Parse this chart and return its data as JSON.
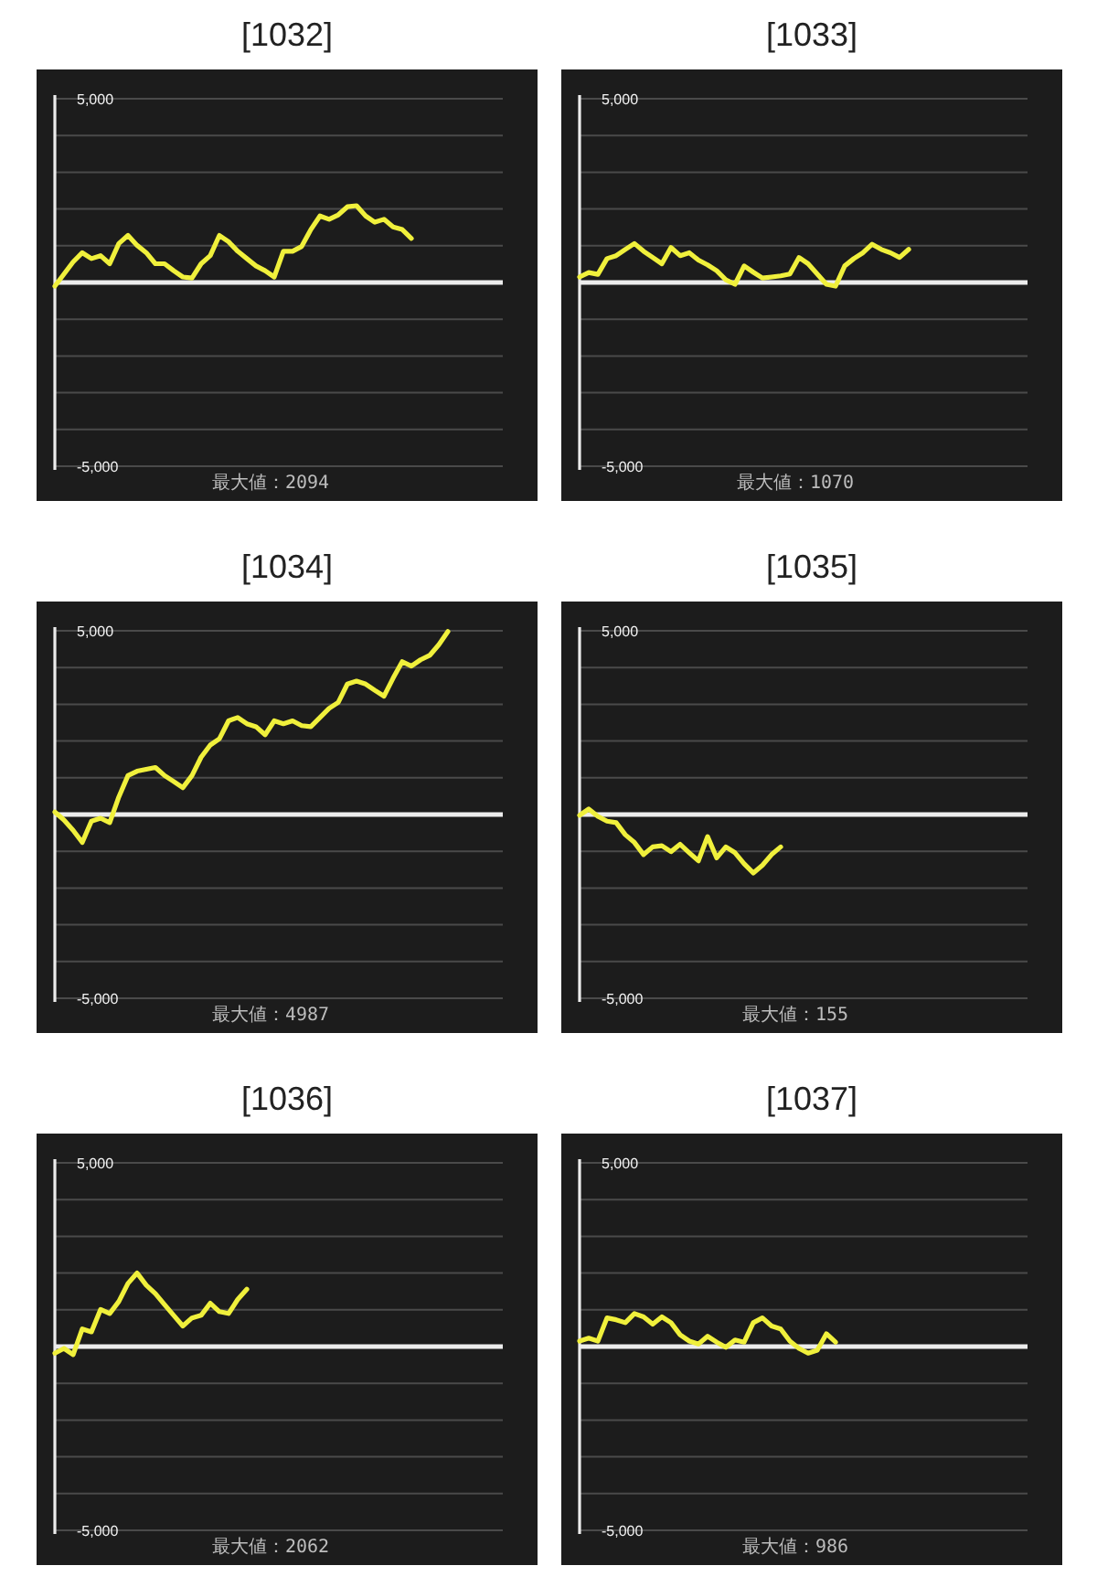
{
  "chart_data": [
    {
      "type": "line",
      "title": "[1032]",
      "annotations": [
        "最大値：2094"
      ],
      "color": "#f0f03c",
      "ylim": [
        -5000,
        5000
      ],
      "grid": "y",
      "tick_labels": "y",
      "yticks": [
        {
          "value": -5000,
          "label": "-5,000"
        },
        {
          "value": -4000,
          "label": null
        },
        {
          "value": -3000,
          "label": null
        },
        {
          "value": -2000,
          "label": null
        },
        {
          "value": -1000,
          "label": null
        },
        {
          "value": 0,
          "label": null
        },
        {
          "value": 1000,
          "label": null
        },
        {
          "value": 2000,
          "label": null
        },
        {
          "value": 3000,
          "label": null
        },
        {
          "value": 4000,
          "label": null
        },
        {
          "value": 5000,
          "label": "5,000"
        }
      ],
      "categories": [
        null,
        null,
        null,
        null,
        null,
        null,
        null,
        null,
        null,
        null,
        null,
        null,
        null,
        null,
        null,
        null,
        null,
        null,
        null,
        null,
        null,
        null,
        null,
        null,
        null,
        null,
        null,
        null,
        null,
        null,
        null,
        null,
        null,
        null,
        null,
        null,
        null,
        null,
        null,
        null,
        null,
        null,
        null,
        null,
        null,
        null,
        null,
        null,
        null,
        null
      ],
      "values": [
        -100,
        230,
        560,
        810,
        650,
        730,
        510,
        1060,
        1280,
        1010,
        810,
        510,
        510,
        320,
        150,
        120,
        510,
        730,
        1280,
        1110,
        850,
        650,
        450,
        320,
        150,
        850,
        850,
        980,
        1440,
        1810,
        1720,
        1840,
        2060,
        2090,
        1810,
        1640,
        1720,
        1510,
        1440,
        1200,
        null,
        null,
        null,
        null,
        null,
        null,
        null,
        null,
        null,
        null
      ]
    },
    {
      "type": "line",
      "title": "[1033]",
      "annotations": [
        "最大値：1070"
      ],
      "color": "#f0f03c",
      "ylim": [
        -5000,
        5000
      ],
      "grid": "y",
      "tick_labels": "y",
      "yticks": [
        {
          "value": -5000,
          "label": "-5,000"
        },
        {
          "value": -4000,
          "label": null
        },
        {
          "value": -3000,
          "label": null
        },
        {
          "value": -2000,
          "label": null
        },
        {
          "value": -1000,
          "label": null
        },
        {
          "value": 0,
          "label": null
        },
        {
          "value": 1000,
          "label": null
        },
        {
          "value": 2000,
          "label": null
        },
        {
          "value": 3000,
          "label": null
        },
        {
          "value": 4000,
          "label": null
        },
        {
          "value": 5000,
          "label": "5,000"
        }
      ],
      "categories": [
        null,
        null,
        null,
        null,
        null,
        null,
        null,
        null,
        null,
        null,
        null,
        null,
        null,
        null,
        null,
        null,
        null,
        null,
        null,
        null,
        null,
        null,
        null,
        null,
        null,
        null,
        null,
        null,
        null,
        null,
        null,
        null,
        null,
        null,
        null,
        null,
        null,
        null,
        null,
        null,
        null,
        null,
        null,
        null,
        null,
        null,
        null,
        null,
        null,
        null
      ],
      "values": [
        150,
        270,
        220,
        650,
        730,
        900,
        1060,
        850,
        680,
        510,
        950,
        730,
        810,
        610,
        480,
        320,
        70,
        -50,
        450,
        280,
        120,
        150,
        180,
        230,
        680,
        510,
        230,
        -50,
        -100,
        450,
        650,
        810,
        1040,
        900,
        810,
        680,
        900,
        null,
        null,
        null,
        null,
        null,
        null,
        null,
        null,
        null,
        null,
        null,
        null,
        null
      ]
    },
    {
      "type": "line",
      "title": "[1034]",
      "annotations": [
        "最大値：4987"
      ],
      "color": "#f0f03c",
      "ylim": [
        -5000,
        5000
      ],
      "grid": "y",
      "tick_labels": "y",
      "yticks": [
        {
          "value": -5000,
          "label": "-5,000"
        },
        {
          "value": -4000,
          "label": null
        },
        {
          "value": -3000,
          "label": null
        },
        {
          "value": -2000,
          "label": null
        },
        {
          "value": -1000,
          "label": null
        },
        {
          "value": 0,
          "label": null
        },
        {
          "value": 1000,
          "label": null
        },
        {
          "value": 2000,
          "label": null
        },
        {
          "value": 3000,
          "label": null
        },
        {
          "value": 4000,
          "label": null
        },
        {
          "value": 5000,
          "label": "5,000"
        }
      ],
      "categories": [
        null,
        null,
        null,
        null,
        null,
        null,
        null,
        null,
        null,
        null,
        null,
        null,
        null,
        null,
        null,
        null,
        null,
        null,
        null,
        null,
        null,
        null,
        null,
        null,
        null,
        null,
        null,
        null,
        null,
        null,
        null,
        null,
        null,
        null,
        null,
        null,
        null,
        null,
        null,
        null,
        null,
        null,
        null,
        null,
        null,
        null,
        null,
        null,
        null,
        null
      ],
      "values": [
        70,
        -150,
        -430,
        -760,
        -180,
        -100,
        -220,
        480,
        1060,
        1180,
        1230,
        1280,
        1060,
        900,
        730,
        1060,
        1560,
        1890,
        2060,
        2550,
        2640,
        2470,
        2390,
        2170,
        2550,
        2470,
        2550,
        2420,
        2390,
        2640,
        2890,
        3050,
        3550,
        3630,
        3550,
        3380,
        3220,
        3710,
        4160,
        4040,
        4210,
        4330,
        4620,
        4980,
        null,
        null,
        null,
        null,
        null,
        null
      ]
    },
    {
      "type": "line",
      "title": "[1035]",
      "annotations": [
        "最大値：155"
      ],
      "color": "#f0f03c",
      "ylim": [
        -5000,
        5000
      ],
      "grid": "y",
      "tick_labels": "y",
      "yticks": [
        {
          "value": -5000,
          "label": "-5,000"
        },
        {
          "value": -4000,
          "label": null
        },
        {
          "value": -3000,
          "label": null
        },
        {
          "value": -2000,
          "label": null
        },
        {
          "value": -1000,
          "label": null
        },
        {
          "value": 0,
          "label": null
        },
        {
          "value": 1000,
          "label": null
        },
        {
          "value": 2000,
          "label": null
        },
        {
          "value": 3000,
          "label": null
        },
        {
          "value": 4000,
          "label": null
        },
        {
          "value": 5000,
          "label": "5,000"
        }
      ],
      "categories": [
        null,
        null,
        null,
        null,
        null,
        null,
        null,
        null,
        null,
        null,
        null,
        null,
        null,
        null,
        null,
        null,
        null,
        null,
        null,
        null,
        null,
        null,
        null,
        null,
        null,
        null,
        null,
        null,
        null,
        null,
        null,
        null,
        null,
        null,
        null,
        null,
        null,
        null,
        null,
        null,
        null,
        null,
        null,
        null,
        null,
        null,
        null,
        null,
        null,
        null
      ],
      "values": [
        -20,
        150,
        -50,
        -180,
        -220,
        -550,
        -760,
        -1090,
        -880,
        -850,
        -1010,
        -810,
        -1040,
        -1260,
        -600,
        -1180,
        -880,
        -1040,
        -1340,
        -1590,
        -1380,
        -1090,
        -880,
        null,
        null,
        null,
        null,
        null,
        null,
        null,
        null,
        null,
        null,
        null,
        null,
        null,
        null,
        null,
        null,
        null,
        null,
        null,
        null,
        null,
        null,
        null,
        null,
        null,
        null,
        null
      ]
    },
    {
      "type": "line",
      "title": "[1036]",
      "annotations": [
        "最大値：2062"
      ],
      "color": "#f0f03c",
      "ylim": [
        -5000,
        5000
      ],
      "grid": "y",
      "tick_labels": "y",
      "yticks": [
        {
          "value": -5000,
          "label": "-5,000"
        },
        {
          "value": -4000,
          "label": null
        },
        {
          "value": -3000,
          "label": null
        },
        {
          "value": -2000,
          "label": null
        },
        {
          "value": -1000,
          "label": null
        },
        {
          "value": 0,
          "label": null
        },
        {
          "value": 1000,
          "label": null
        },
        {
          "value": 2000,
          "label": null
        },
        {
          "value": 3000,
          "label": null
        },
        {
          "value": 4000,
          "label": null
        },
        {
          "value": 5000,
          "label": "5,000"
        }
      ],
      "categories": [
        null,
        null,
        null,
        null,
        null,
        null,
        null,
        null,
        null,
        null,
        null,
        null,
        null,
        null,
        null,
        null,
        null,
        null,
        null,
        null,
        null,
        null,
        null,
        null,
        null,
        null,
        null,
        null,
        null,
        null,
        null,
        null,
        null,
        null,
        null,
        null,
        null,
        null,
        null,
        null,
        null,
        null,
        null,
        null,
        null,
        null,
        null,
        null,
        null,
        null
      ],
      "values": [
        -180,
        -50,
        -220,
        480,
        400,
        1010,
        900,
        1230,
        1720,
        2000,
        1670,
        1440,
        1140,
        850,
        560,
        780,
        850,
        1180,
        950,
        900,
        1280,
        1560,
        null,
        null,
        null,
        null,
        null,
        null,
        null,
        null,
        null,
        null,
        null,
        null,
        null,
        null,
        null,
        null,
        null,
        null,
        null,
        null,
        null,
        null,
        null,
        null,
        null,
        null,
        null,
        null
      ]
    },
    {
      "type": "line",
      "title": "[1037]",
      "annotations": [
        "最大値：986"
      ],
      "color": "#f0f03c",
      "ylim": [
        -5000,
        5000
      ],
      "grid": "y",
      "tick_labels": "y",
      "yticks": [
        {
          "value": -5000,
          "label": "-5,000"
        },
        {
          "value": -4000,
          "label": null
        },
        {
          "value": -3000,
          "label": null
        },
        {
          "value": -2000,
          "label": null
        },
        {
          "value": -1000,
          "label": null
        },
        {
          "value": 0,
          "label": null
        },
        {
          "value": 1000,
          "label": null
        },
        {
          "value": 2000,
          "label": null
        },
        {
          "value": 3000,
          "label": null
        },
        {
          "value": 4000,
          "label": null
        },
        {
          "value": 5000,
          "label": "5,000"
        }
      ],
      "categories": [
        null,
        null,
        null,
        null,
        null,
        null,
        null,
        null,
        null,
        null,
        null,
        null,
        null,
        null,
        null,
        null,
        null,
        null,
        null,
        null,
        null,
        null,
        null,
        null,
        null,
        null,
        null,
        null,
        null,
        null,
        null,
        null,
        null,
        null,
        null,
        null,
        null,
        null,
        null,
        null,
        null,
        null,
        null,
        null,
        null,
        null,
        null,
        null,
        null,
        null
      ],
      "values": [
        150,
        230,
        150,
        780,
        730,
        650,
        900,
        810,
        610,
        810,
        650,
        320,
        150,
        70,
        280,
        120,
        -20,
        180,
        120,
        650,
        780,
        560,
        480,
        150,
        -50,
        -180,
        -100,
        350,
        120,
        null,
        null,
        null,
        null,
        null,
        null,
        null,
        null,
        null,
        null,
        null,
        null,
        null,
        null,
        null,
        null,
        null,
        null,
        null,
        null,
        null
      ]
    }
  ]
}
